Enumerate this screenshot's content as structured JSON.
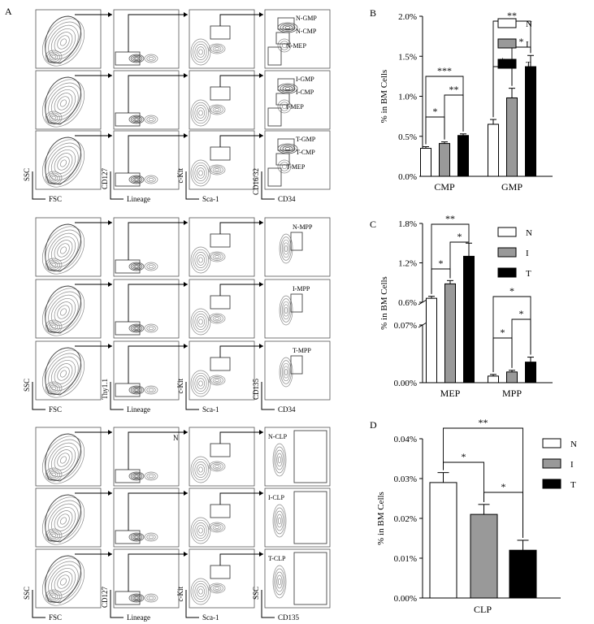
{
  "panel_letters": [
    "A",
    "B",
    "C",
    "D"
  ],
  "flow": {
    "blocks": [
      {
        "id": "progenitor",
        "rows": [
          {
            "gates": [
              "N-GMP",
              "N-CMP",
              "N-MEP"
            ]
          },
          {
            "gates": [
              "I-GMP",
              "I-CMP",
              "I-MEP"
            ]
          },
          {
            "gates": [
              "T-GMP",
              "T-CMP",
              "T-MEP"
            ]
          }
        ],
        "xlabels": [
          "FSC",
          "Lineage",
          "Sca-1",
          "CD34"
        ],
        "ylabels": [
          "SSC",
          "CD127",
          "c-Kit",
          "CD16/32"
        ]
      },
      {
        "id": "mpp",
        "rows": [
          {
            "gates": [
              "N-MPP"
            ]
          },
          {
            "gates": [
              "I-MPP"
            ]
          },
          {
            "gates": [
              "T-MPP"
            ]
          }
        ],
        "xlabels": [
          "FSC",
          "Lineage",
          "Sca-1",
          "CD34"
        ],
        "ylabels": [
          "SSC",
          "Thy1.1",
          "c-Kit",
          "CD135"
        ]
      },
      {
        "id": "clp",
        "rows": [
          {
            "gates": [
              "N-CLP"
            ],
            "extra": "N"
          },
          {
            "gates": [
              "I-CLP"
            ]
          },
          {
            "gates": [
              "T-CLP"
            ]
          }
        ],
        "xlabels": [
          "FSC",
          "Lineage",
          "Sca-1",
          "CD135"
        ],
        "ylabels": [
          "SSC",
          "CD127",
          "c-Kit",
          "SSC"
        ]
      }
    ]
  },
  "legend": {
    "items": [
      "N",
      "I",
      "T"
    ],
    "colors": [
      "#ffffff",
      "#999999",
      "#000000"
    ]
  },
  "chart_data": [
    {
      "panel": "B",
      "type": "bar",
      "categories": [
        "CMP",
        "GMP"
      ],
      "series": [
        {
          "name": "N",
          "values": [
            0.35,
            0.65
          ],
          "errors": [
            0.02,
            0.06
          ]
        },
        {
          "name": "I",
          "values": [
            0.41,
            0.98
          ],
          "errors": [
            0.02,
            0.12
          ]
        },
        {
          "name": "T",
          "values": [
            0.51,
            1.37
          ],
          "errors": [
            0.02,
            0.14
          ]
        }
      ],
      "ylabel": "% in BM Cells",
      "ylim": [
        0,
        2.0
      ],
      "yticks": [
        "0.0%",
        "0.5%",
        "1.0%",
        "1.5%",
        "2.0%"
      ],
      "significance": [
        {
          "category": "CMP",
          "pair": [
            "N",
            "I"
          ],
          "label": "*"
        },
        {
          "category": "CMP",
          "pair": [
            "I",
            "T"
          ],
          "label": "**"
        },
        {
          "category": "CMP",
          "pair": [
            "N",
            "T"
          ],
          "label": "***"
        },
        {
          "category": "GMP",
          "pair": [
            "N",
            "I"
          ],
          "label": "*"
        },
        {
          "category": "GMP",
          "pair": [
            "I",
            "T"
          ],
          "label": "*"
        },
        {
          "category": "GMP",
          "pair": [
            "N",
            "T"
          ],
          "label": "**"
        }
      ]
    },
    {
      "panel": "C",
      "type": "bar",
      "categories": [
        "MEP",
        "MPP"
      ],
      "series": [
        {
          "name": "N",
          "values": [
            0.66,
            0.008
          ],
          "errors": [
            0.03,
            0.002
          ]
        },
        {
          "name": "I",
          "values": [
            0.88,
            0.013
          ],
          "errors": [
            0.05,
            0.002
          ]
        },
        {
          "name": "T",
          "values": [
            1.3,
            0.025
          ],
          "errors": [
            0.2,
            0.006
          ]
        }
      ],
      "ylabel": "% in BM Cells",
      "yaxis_break": true,
      "upper_range": [
        0.6,
        1.8
      ],
      "upper_ticks": [
        "0.6%",
        "1.2%",
        "1.8%"
      ],
      "lower_range": [
        0,
        0.07
      ],
      "lower_ticks": [
        "0.00%",
        "0.07%"
      ],
      "significance": [
        {
          "category": "MEP",
          "pair": [
            "N",
            "I"
          ],
          "label": "*"
        },
        {
          "category": "MEP",
          "pair": [
            "I",
            "T"
          ],
          "label": "*"
        },
        {
          "category": "MEP",
          "pair": [
            "N",
            "T"
          ],
          "label": "**"
        },
        {
          "category": "MPP",
          "pair": [
            "N",
            "I"
          ],
          "label": "*"
        },
        {
          "category": "MPP",
          "pair": [
            "I",
            "T"
          ],
          "label": "*"
        },
        {
          "category": "MPP",
          "pair": [
            "N",
            "T"
          ],
          "label": "*"
        }
      ]
    },
    {
      "panel": "D",
      "type": "bar",
      "categories": [
        "CLP"
      ],
      "series": [
        {
          "name": "N",
          "values": [
            0.029
          ],
          "errors": [
            0.0025
          ]
        },
        {
          "name": "I",
          "values": [
            0.021
          ],
          "errors": [
            0.0025
          ]
        },
        {
          "name": "T",
          "values": [
            0.012
          ],
          "errors": [
            0.0025
          ]
        }
      ],
      "ylabel": "% in BM Cells",
      "ylim": [
        0,
        0.04
      ],
      "yticks": [
        "0.00%",
        "0.01%",
        "0.02%",
        "0.03%",
        "0.04%"
      ],
      "significance": [
        {
          "category": "CLP",
          "pair": [
            "N",
            "I"
          ],
          "label": "*"
        },
        {
          "category": "CLP",
          "pair": [
            "I",
            "T"
          ],
          "label": "*"
        },
        {
          "category": "CLP",
          "pair": [
            "N",
            "T"
          ],
          "label": "**"
        }
      ]
    }
  ]
}
